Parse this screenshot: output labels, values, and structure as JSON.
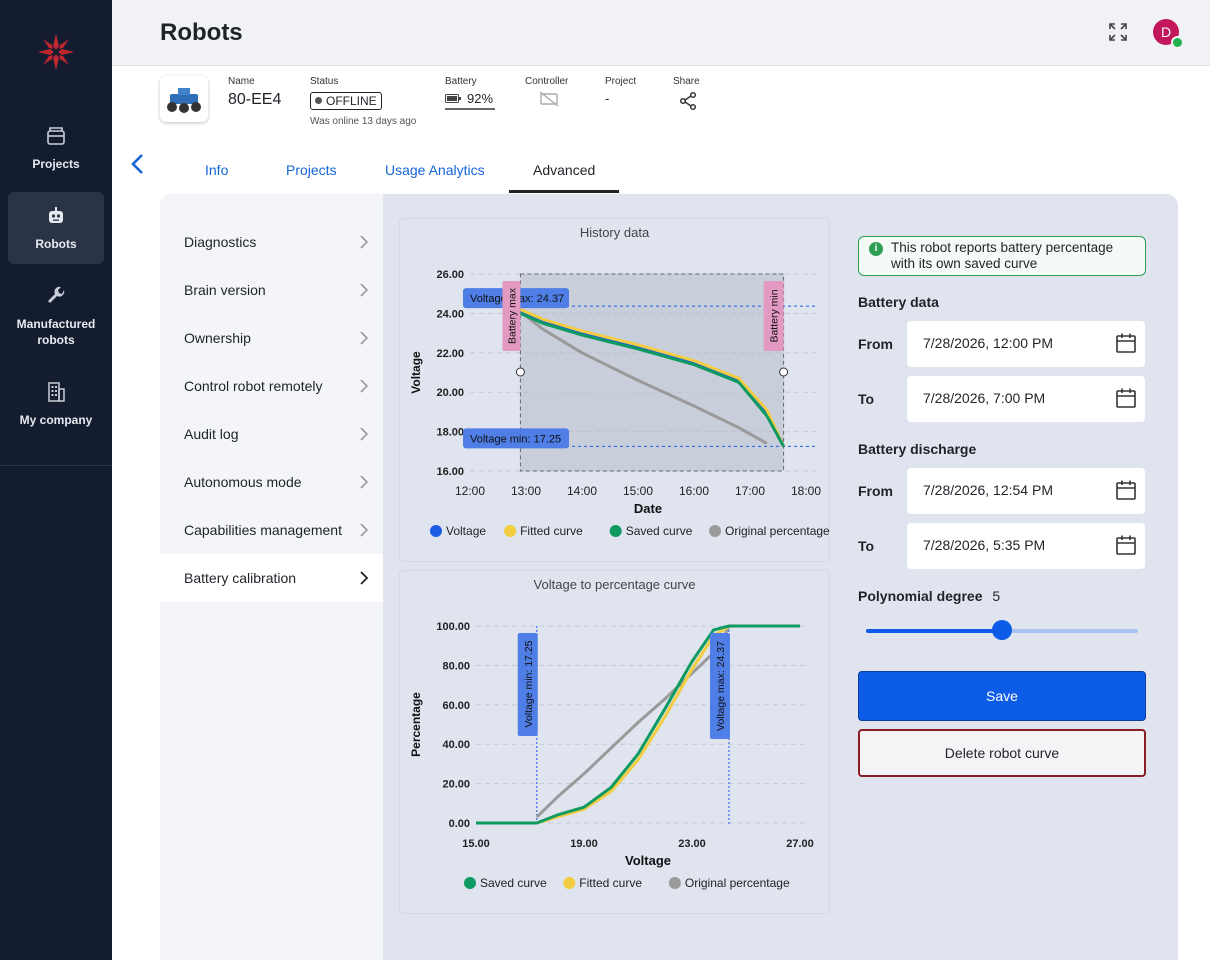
{
  "sidebar": {
    "items": [
      {
        "label": "Projects",
        "icon": "folder-icon"
      },
      {
        "label": "Robots",
        "icon": "robot-icon"
      },
      {
        "label": "Manufactured robots",
        "icon": "wrench-icon"
      },
      {
        "label": "My company",
        "icon": "building-icon"
      }
    ]
  },
  "header": {
    "title": "Robots",
    "avatar_initial": "D"
  },
  "robot": {
    "name_label": "Name",
    "name": "80-EE4",
    "status_label": "Status",
    "status": "OFFLINE",
    "last_online": "Was online 13 days ago",
    "battery_label": "Battery",
    "battery": "92%",
    "controller_label": "Controller",
    "project_label": "Project",
    "project": "-",
    "share_label": "Share"
  },
  "tabs": [
    {
      "label": "Info"
    },
    {
      "label": "Projects"
    },
    {
      "label": "Usage Analytics"
    },
    {
      "label": "Advanced"
    }
  ],
  "menu": [
    {
      "label": "Diagnostics"
    },
    {
      "label": "Brain version"
    },
    {
      "label": "Ownership"
    },
    {
      "label": "Control robot remotely"
    },
    {
      "label": "Audit log"
    },
    {
      "label": "Autonomous mode"
    },
    {
      "label": "Capabilities management"
    },
    {
      "label": "Battery calibration"
    }
  ],
  "form": {
    "notice": "This robot reports battery percentage with its own saved curve",
    "battery_data_label": "Battery data",
    "battery_discharge_label": "Battery discharge",
    "from_label": "From",
    "to_label": "To",
    "data_from": "7/28/2026, 12:00 PM",
    "data_to": "7/28/2026, 7:00 PM",
    "discharge_from": "7/28/2026, 12:54 PM",
    "discharge_to": "7/28/2026, 5:35 PM",
    "poly_label": "Polynomial degree",
    "poly_value": "5",
    "poly_fraction": 0.5,
    "save_label": "Save",
    "delete_label": "Delete robot curve"
  },
  "colors": {
    "voltage": "#1a5ce5",
    "fitted": "#f2cd3f",
    "saved": "#0f9a62",
    "original": "#9a9a9a",
    "accent": "#0d5ce8"
  },
  "chart_data": [
    {
      "type": "line",
      "title": "History data",
      "xlabel": "Date",
      "ylabel": "Voltage",
      "x_ticks": [
        "12:00",
        "13:00",
        "14:00",
        "15:00",
        "16:00",
        "17:00",
        "18:00"
      ],
      "y_ticks": [
        "16.00",
        "18.00",
        "20.00",
        "22.00",
        "24.00",
        "26.00"
      ],
      "ylim": [
        16,
        26
      ],
      "x_unit": "hours",
      "xlim": [
        12,
        18
      ],
      "legend": [
        "Voltage",
        "Fitted curve",
        "Saved curve",
        "Original percentage"
      ],
      "annotations": {
        "voltage_max": "Voltage max: 24.37",
        "voltage_min": "Voltage min: 17.25",
        "battery_max": "Battery max",
        "battery_min": "Battery min"
      },
      "series": [
        {
          "name": "Voltage",
          "x": [
            12.9,
            13.3,
            14,
            15,
            16,
            16.8,
            17.3,
            17.6
          ],
          "y": [
            24.1,
            23.6,
            23.0,
            22.3,
            21.5,
            20.6,
            19.0,
            17.25
          ]
        },
        {
          "name": "Fitted curve",
          "x": [
            12.9,
            13.3,
            14,
            15,
            16,
            16.8,
            17.3,
            17.6
          ],
          "y": [
            24.2,
            23.7,
            23.1,
            22.4,
            21.6,
            20.7,
            19.1,
            17.25
          ]
        },
        {
          "name": "Saved curve",
          "x": [
            12.9,
            13.3,
            14,
            15,
            16,
            16.8,
            17.3,
            17.6
          ],
          "y": [
            24.0,
            23.5,
            22.9,
            22.2,
            21.4,
            20.5,
            18.8,
            17.25
          ]
        },
        {
          "name": "Original percentage",
          "x": [
            12.9,
            13.3,
            14,
            15,
            16,
            16.8,
            17.3
          ],
          "y": [
            24.1,
            23.2,
            22.0,
            20.6,
            19.3,
            18.2,
            17.4
          ]
        }
      ]
    },
    {
      "type": "line",
      "title": "Voltage to percentage curve",
      "xlabel": "Voltage",
      "ylabel": "Percentage",
      "x_ticks": [
        "15.00",
        "19.00",
        "23.00",
        "27.00"
      ],
      "y_ticks": [
        "0.00",
        "20.00",
        "40.00",
        "60.00",
        "80.00",
        "100.00"
      ],
      "xlim": [
        15,
        27
      ],
      "ylim": [
        0,
        100
      ],
      "legend": [
        "Saved curve",
        "Fitted curve",
        "Original percentage"
      ],
      "annotations": {
        "voltage_min": "Voltage min: 17.25",
        "voltage_max": "Voltage max: 24.37"
      },
      "series": [
        {
          "name": "Saved curve",
          "x": [
            15,
            17.25,
            18,
            19,
            20,
            21,
            22,
            23,
            23.8,
            24.37,
            27
          ],
          "y": [
            0,
            0,
            4,
            8,
            18,
            35,
            58,
            82,
            98,
            100,
            100
          ]
        },
        {
          "name": "Fitted curve",
          "x": [
            15,
            17.25,
            18,
            19,
            20,
            21,
            22,
            23,
            23.8,
            24.37,
            27
          ],
          "y": [
            0,
            0,
            3,
            7,
            16,
            32,
            54,
            78,
            95,
            100,
            100
          ]
        },
        {
          "name": "Original percentage",
          "x": [
            17.25,
            18,
            19,
            20,
            21,
            22,
            23,
            24,
            24.37
          ],
          "y": [
            3,
            13,
            25,
            38,
            51,
            63,
            76,
            89,
            100
          ]
        }
      ]
    }
  ]
}
